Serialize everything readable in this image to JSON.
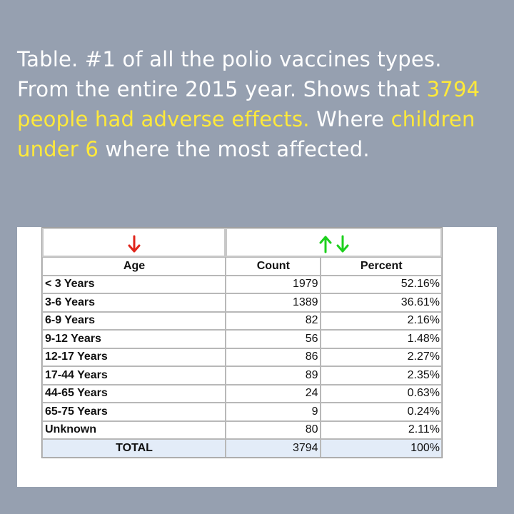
{
  "caption": {
    "part1": "Table. #1 of all the polio vaccines types. From the entire 2015 year. Shows that ",
    "highlight1": "3794 people had adverse effects.",
    "part2": " Where ",
    "highlight2": "children under 6",
    "part3": " where the most affected."
  },
  "colors": {
    "background": "#96a0b0",
    "highlight": "#ffe93a",
    "arrow_down_red": "#e0251b",
    "arrow_green": "#1dd01d",
    "total_row": "#e3ecf8"
  },
  "icons": {
    "age_sort": "red-down-arrow-icon",
    "count_sort_up": "green-up-arrow-icon",
    "count_sort_down": "green-down-arrow-icon"
  },
  "table": {
    "headers": [
      "Age",
      "Count",
      "Percent"
    ],
    "rows": [
      {
        "age": "< 3 Years",
        "count": "1979",
        "percent": "52.16%"
      },
      {
        "age": "3-6 Years",
        "count": "1389",
        "percent": "36.61%"
      },
      {
        "age": "6-9 Years",
        "count": "82",
        "percent": "2.16%"
      },
      {
        "age": "9-12 Years",
        "count": "56",
        "percent": "1.48%"
      },
      {
        "age": "12-17 Years",
        "count": "86",
        "percent": "2.27%"
      },
      {
        "age": "17-44 Years",
        "count": "89",
        "percent": "2.35%"
      },
      {
        "age": "44-65 Years",
        "count": "24",
        "percent": "0.63%"
      },
      {
        "age": "65-75 Years",
        "count": "9",
        "percent": "0.24%"
      },
      {
        "age": "Unknown",
        "count": "80",
        "percent": "2.11%"
      }
    ],
    "total": {
      "label": "TOTAL",
      "count": "3794",
      "percent": "100%"
    }
  }
}
